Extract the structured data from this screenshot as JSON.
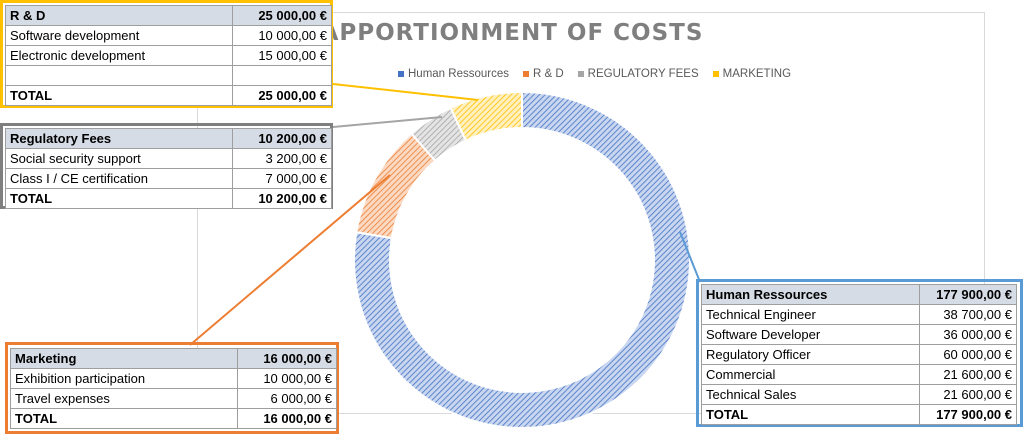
{
  "chart_data": {
    "type": "donut",
    "title": "APPORTIONMENT OF COSTS",
    "legend_position": "top",
    "series": [
      {
        "name": "Human Ressources",
        "value": 177900,
        "color": "#4472c4"
      },
      {
        "name": "R & D",
        "value": 25000,
        "color": "#ed7d31"
      },
      {
        "name": "REGULATORY FEES",
        "value": 10200,
        "color": "#a5a5a5"
      },
      {
        "name": "MARKETING",
        "value": 16000,
        "color": "#ffc000"
      }
    ]
  },
  "tables": {
    "rd": {
      "header": {
        "label": "R & D",
        "amount": "25 000,00 €"
      },
      "rows": [
        {
          "label": "Software development",
          "amount": "10 000,00 €"
        },
        {
          "label": "Electronic development",
          "amount": "15 000,00 €"
        },
        {
          "label": "",
          "amount": ""
        }
      ],
      "total": {
        "label": "TOTAL",
        "amount": "25 000,00 €"
      }
    },
    "regulatory": {
      "header": {
        "label": "Regulatory Fees",
        "amount": "10 200,00 €"
      },
      "rows": [
        {
          "label": "Social security support",
          "amount": "3 200,00 €"
        },
        {
          "label": "Class I / CE certification",
          "amount": "7 000,00 €"
        }
      ],
      "total": {
        "label": "TOTAL",
        "amount": "10 200,00 €"
      }
    },
    "marketing": {
      "header": {
        "label": "Marketing",
        "amount": "16 000,00 €"
      },
      "rows": [
        {
          "label": "Exhibition participation",
          "amount": "10 000,00 €"
        },
        {
          "label": "Travel expenses",
          "amount": "6 000,00 €"
        }
      ],
      "total": {
        "label": "TOTAL",
        "amount": "16 000,00 €"
      }
    },
    "hr": {
      "header": {
        "label": "Human Ressources",
        "amount": "177 900,00 €"
      },
      "rows": [
        {
          "label": "Technical Engineer",
          "amount": "38 700,00 €"
        },
        {
          "label": "Software Developer",
          "amount": "36 000,00 €"
        },
        {
          "label": "Regulatory Officer",
          "amount": "60 000,00 €"
        },
        {
          "label": "Commercial",
          "amount": "21 600,00 €"
        },
        {
          "label": "Technical Sales",
          "amount": "21 600,00 €"
        }
      ],
      "total": {
        "label": "TOTAL",
        "amount": "177 900,00 €"
      }
    }
  }
}
